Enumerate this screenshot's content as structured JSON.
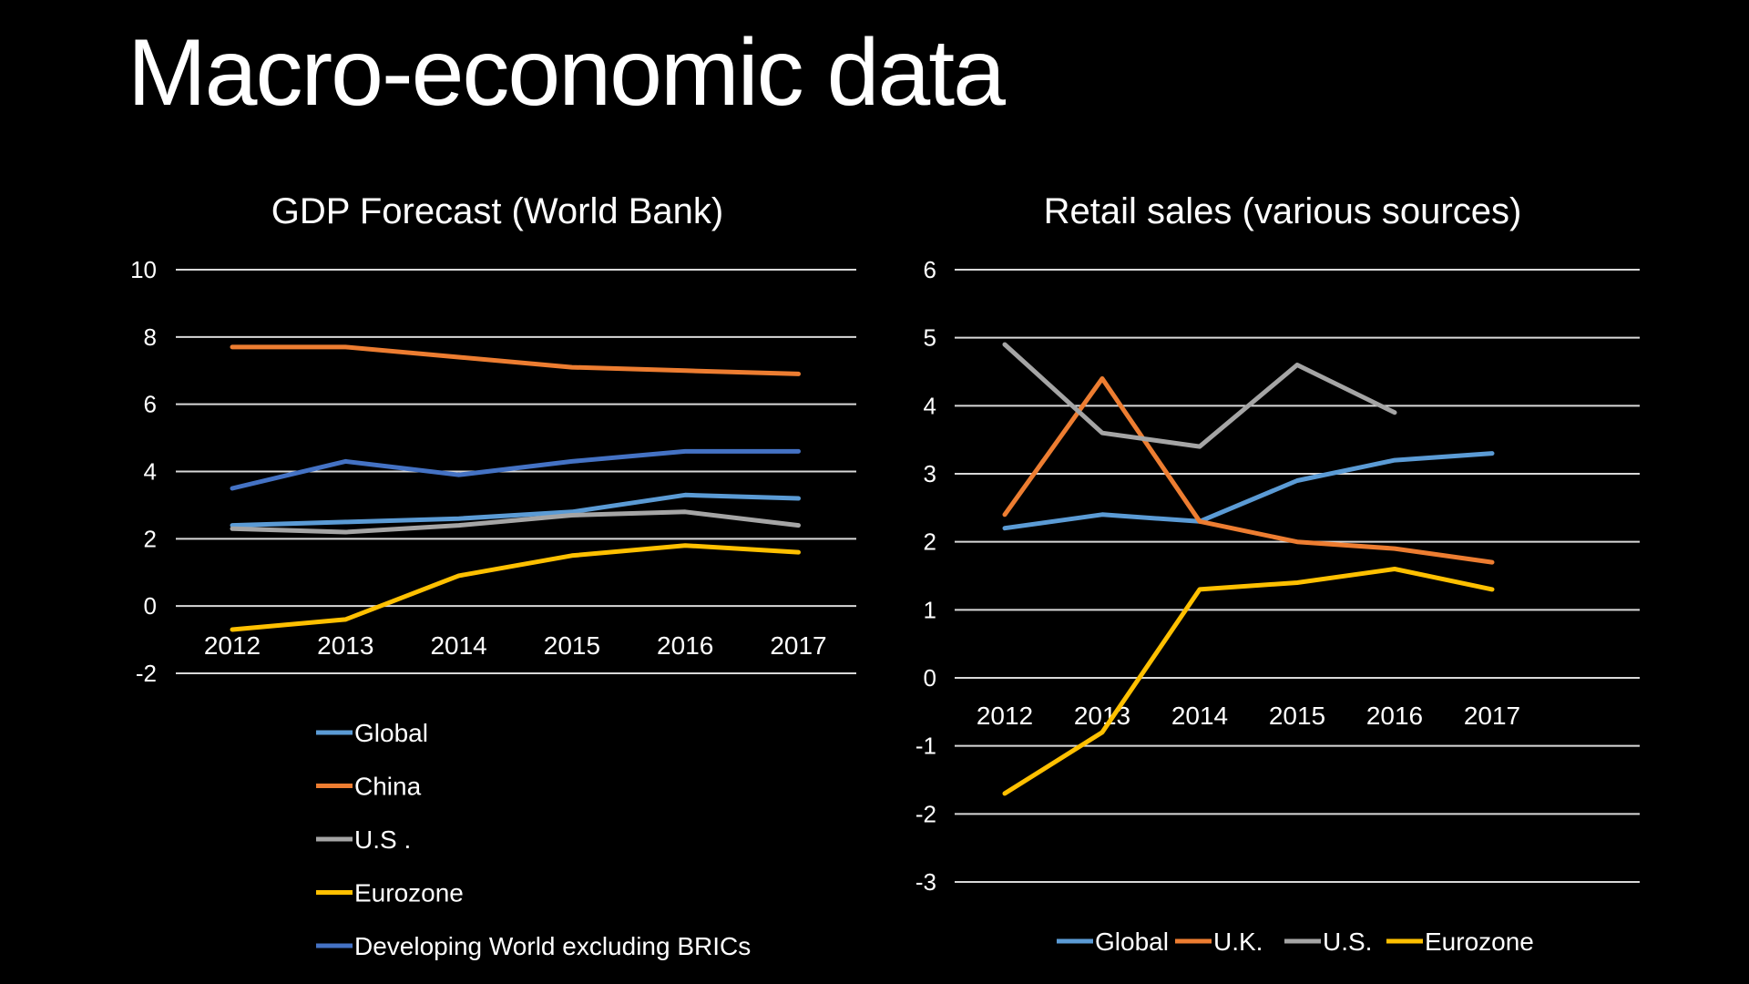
{
  "slide": {
    "title": "Macro-economic data"
  },
  "chart_data": [
    {
      "type": "line",
      "title": "GDP Forecast (World Bank)",
      "categories": [
        "2012",
        "2013",
        "2014",
        "2015",
        "2016",
        "2017"
      ],
      "ylim": [
        -2,
        10
      ],
      "yticks": [
        "10",
        "8",
        "6",
        "4",
        "2",
        "0",
        "-2"
      ],
      "grid": true,
      "legend_position": "bottom",
      "series": [
        {
          "name": "Global",
          "color": "#5b9bd5",
          "values": [
            2.4,
            2.5,
            2.6,
            2.8,
            3.3,
            3.2
          ]
        },
        {
          "name": "China",
          "color": "#ed7d31",
          "values": [
            7.7,
            7.7,
            7.4,
            7.1,
            7.0,
            6.9
          ]
        },
        {
          "name": "U.S .",
          "color": "#a5a5a5",
          "values": [
            2.3,
            2.2,
            2.4,
            2.7,
            2.8,
            2.4
          ]
        },
        {
          "name": "Eurozone",
          "color": "#ffc000",
          "values": [
            -0.7,
            -0.4,
            0.9,
            1.5,
            1.8,
            1.6
          ]
        },
        {
          "name": "Developing World excluding BRICs",
          "color": "#4472c4",
          "values": [
            3.5,
            4.3,
            3.9,
            4.3,
            4.6,
            4.6
          ]
        }
      ]
    },
    {
      "type": "line",
      "title": "Retail sales (various sources)",
      "categories": [
        "2012",
        "2013",
        "2014",
        "2015",
        "2016",
        "2017"
      ],
      "ylim": [
        -3,
        6
      ],
      "yticks": [
        "6",
        "5",
        "4",
        "3",
        "2",
        "1",
        "0",
        "-1",
        "-2",
        "-3"
      ],
      "grid": true,
      "legend_position": "bottom",
      "series": [
        {
          "name": "Global",
          "color": "#5b9bd5",
          "values": [
            2.2,
            2.4,
            2.3,
            2.9,
            3.2,
            3.3
          ]
        },
        {
          "name": "U.K.",
          "color": "#ed7d31",
          "values": [
            2.4,
            4.4,
            2.3,
            2.0,
            1.9,
            1.7
          ]
        },
        {
          "name": "U.S.",
          "color": "#a5a5a5",
          "values": [
            4.9,
            3.6,
            3.4,
            4.6,
            3.9,
            null
          ]
        },
        {
          "name": "Eurozone",
          "color": "#ffc000",
          "values": [
            -1.7,
            -0.8,
            1.3,
            1.4,
            1.6,
            1.3
          ]
        }
      ]
    }
  ]
}
